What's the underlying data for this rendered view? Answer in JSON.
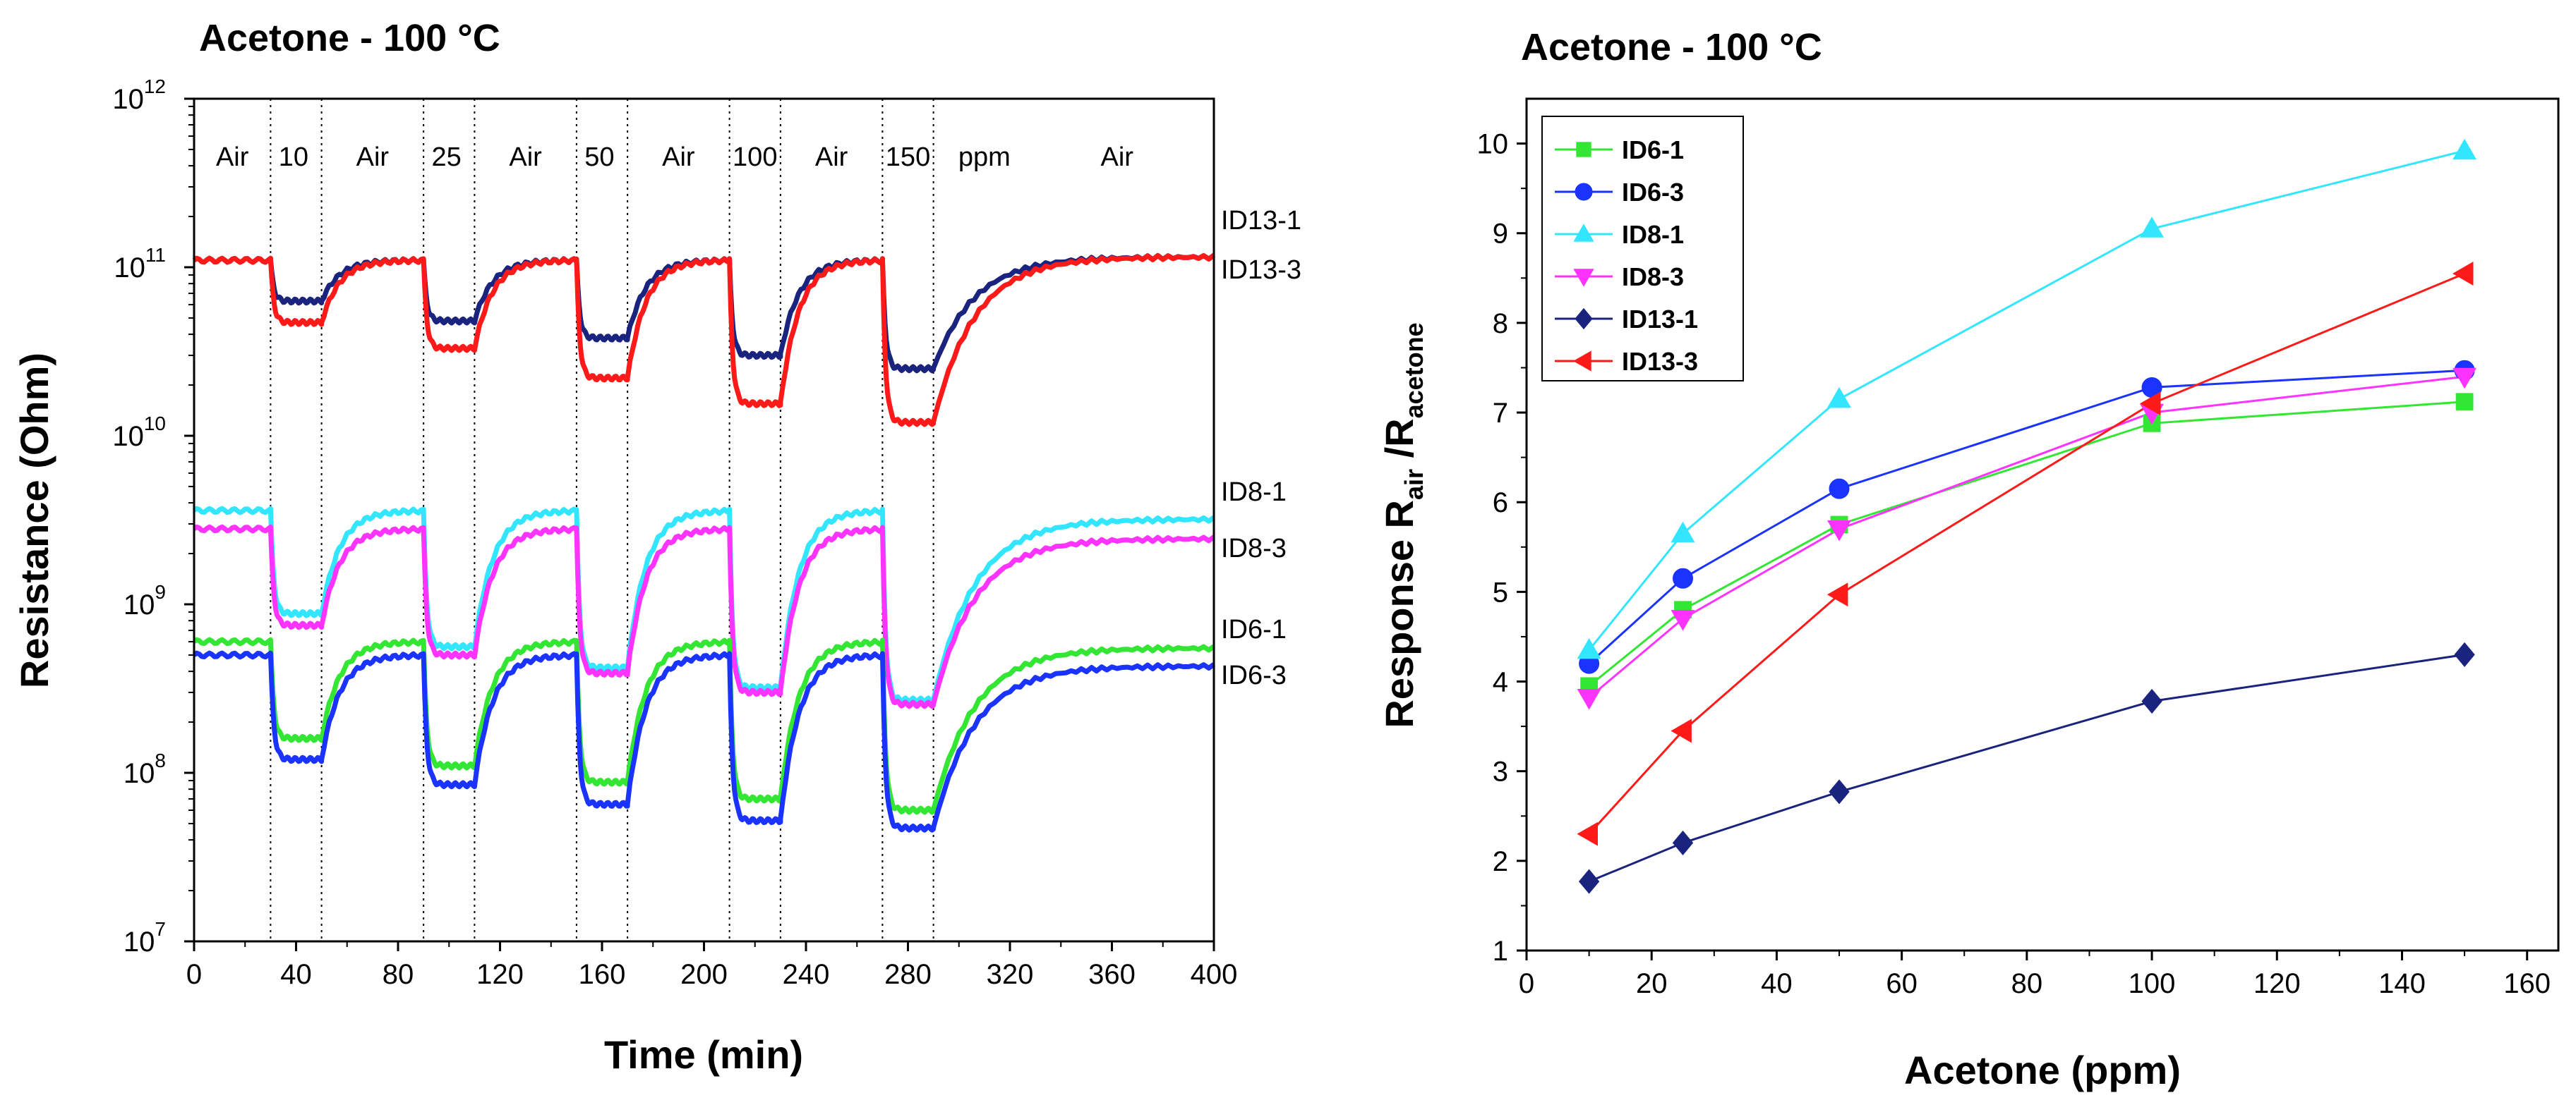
{
  "chart_data": [
    {
      "type": "line",
      "title": "Acetone - 100 °C",
      "xlabel": "Time (min)",
      "ylabel": "Resistance (Ohm)",
      "xlim": [
        0,
        400
      ],
      "ylim": [
        10000000,
        1000000000000
      ],
      "yscale": "log",
      "x_ticks": [
        0,
        40,
        80,
        120,
        160,
        200,
        240,
        280,
        320,
        360,
        400
      ],
      "y_tick_labels": [
        {
          "base": "10",
          "exp": "12",
          "value": 1000000000000
        },
        {
          "base": "10",
          "exp": "11",
          "value": 100000000000
        },
        {
          "base": "10",
          "exp": "10",
          "value": 10000000000
        },
        {
          "base": "10",
          "exp": "9",
          "value": 1000000000
        },
        {
          "base": "10",
          "exp": "8",
          "value": 100000000
        },
        {
          "base": "10",
          "exp": "7",
          "value": 10000000
        }
      ],
      "exposure_boundaries": [
        30,
        50,
        90,
        110,
        150,
        170,
        210,
        230,
        270,
        290
      ],
      "region_labels": [
        {
          "text": "Air",
          "x": 15
        },
        {
          "text": "10",
          "x": 39
        },
        {
          "text": "Air",
          "x": 70
        },
        {
          "text": "25",
          "x": 99
        },
        {
          "text": "Air",
          "x": 130
        },
        {
          "text": "50",
          "x": 159
        },
        {
          "text": "Air",
          "x": 190
        },
        {
          "text": "100",
          "x": 220
        },
        {
          "text": "Air",
          "x": 250
        },
        {
          "text": "150",
          "x": 280
        },
        {
          "text": "ppm",
          "x": 310
        },
        {
          "text": "Air",
          "x": 362
        }
      ],
      "series": [
        {
          "name": "ID13-1",
          "color": "#1a237e",
          "baseline": 110000000000,
          "exposed": [
            63000000000,
            48000000000,
            38000000000,
            30000000000,
            25000000000
          ],
          "end": 115000000000
        },
        {
          "name": "ID13-3",
          "color": "#ff1a1a",
          "baseline": 110000000000,
          "exposed": [
            47000000000,
            33000000000,
            22000000000,
            15500000000,
            12000000000
          ],
          "end": 115000000000
        },
        {
          "name": "ID8-1",
          "color": "#33e6ff",
          "baseline": 3600000000,
          "exposed": [
            880000000,
            560000000,
            420000000,
            320000000,
            270000000
          ],
          "end": 3200000000
        },
        {
          "name": "ID8-3",
          "color": "#ff33ff",
          "baseline": 2800000000,
          "exposed": [
            750000000,
            500000000,
            390000000,
            300000000,
            255000000
          ],
          "end": 2450000000
        },
        {
          "name": "ID6-1",
          "color": "#33e633",
          "baseline": 600000000,
          "exposed": [
            160000000,
            110000000,
            88000000,
            70000000,
            60000000
          ],
          "end": 550000000
        },
        {
          "name": "ID6-3",
          "color": "#1a33ff",
          "baseline": 500000000,
          "exposed": [
            120000000,
            85000000,
            65000000,
            52000000,
            47000000
          ],
          "end": 430000000
        }
      ]
    },
    {
      "type": "line",
      "title": "Acetone - 100 °C",
      "xlabel": "Acetone (ppm)",
      "ylabel": "Response R",
      "ylabel_sub1": "air",
      "ylabel_mid": " /R",
      "ylabel_sub2": "acetone",
      "xlim": [
        0,
        165
      ],
      "ylim": [
        1,
        10.5
      ],
      "x_ticks": [
        0,
        20,
        40,
        60,
        80,
        100,
        120,
        140,
        160
      ],
      "y_ticks": [
        1,
        2,
        3,
        4,
        5,
        6,
        7,
        8,
        9,
        10
      ],
      "legend_position": "top-left",
      "x": [
        10,
        25,
        50,
        100,
        150
      ],
      "series": [
        {
          "name": "ID6-1",
          "color": "#33e633",
          "marker": "square",
          "values": [
            3.95,
            4.8,
            5.75,
            6.88,
            7.12
          ]
        },
        {
          "name": "ID6-3",
          "color": "#1a33ff",
          "marker": "circle",
          "values": [
            4.2,
            5.15,
            6.15,
            7.28,
            7.47
          ]
        },
        {
          "name": "ID8-1",
          "color": "#33e6ff",
          "marker": "triangle-up",
          "values": [
            4.35,
            5.65,
            7.15,
            9.05,
            9.92
          ]
        },
        {
          "name": "ID8-3",
          "color": "#ff33ff",
          "marker": "triangle-down",
          "values": [
            3.82,
            4.7,
            5.7,
            7.0,
            7.4
          ]
        },
        {
          "name": "ID13-1",
          "color": "#1a237e",
          "marker": "diamond",
          "values": [
            1.77,
            2.2,
            2.77,
            3.78,
            4.3
          ]
        },
        {
          "name": "ID13-3",
          "color": "#ff1a1a",
          "marker": "triangle-left",
          "values": [
            2.3,
            3.45,
            4.97,
            7.1,
            8.55
          ]
        }
      ]
    }
  ]
}
